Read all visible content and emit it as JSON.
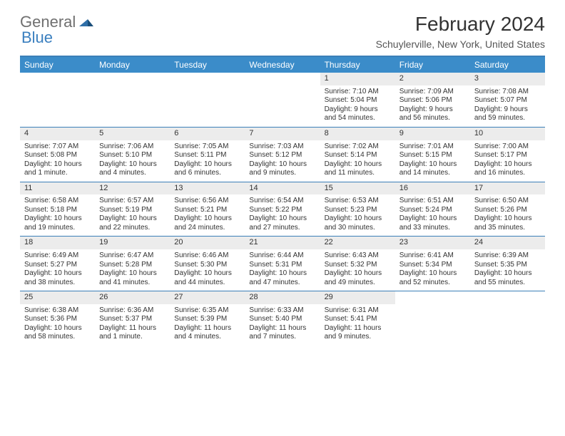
{
  "brand": {
    "part1": "General",
    "part2": "Blue"
  },
  "title": "February 2024",
  "location": "Schuylerville, New York, United States",
  "colors": {
    "header_bg": "#3b8cc9",
    "header_text": "#ffffff",
    "rule": "#3b7fb8",
    "daynum_bg": "#ececec",
    "body_text": "#333333",
    "logo_gray": "#6f6f6f",
    "logo_blue": "#3a7fbf"
  },
  "typography": {
    "title_fontsize": 28,
    "location_fontsize": 14,
    "dayhead_fontsize": 12,
    "cell_fontsize": 10
  },
  "day_names": [
    "Sunday",
    "Monday",
    "Tuesday",
    "Wednesday",
    "Thursday",
    "Friday",
    "Saturday"
  ],
  "weeks": [
    [
      null,
      null,
      null,
      null,
      {
        "n": "1",
        "sr": "Sunrise: 7:10 AM",
        "ss": "Sunset: 5:04 PM",
        "d1": "Daylight: 9 hours",
        "d2": "and 54 minutes."
      },
      {
        "n": "2",
        "sr": "Sunrise: 7:09 AM",
        "ss": "Sunset: 5:06 PM",
        "d1": "Daylight: 9 hours",
        "d2": "and 56 minutes."
      },
      {
        "n": "3",
        "sr": "Sunrise: 7:08 AM",
        "ss": "Sunset: 5:07 PM",
        "d1": "Daylight: 9 hours",
        "d2": "and 59 minutes."
      }
    ],
    [
      {
        "n": "4",
        "sr": "Sunrise: 7:07 AM",
        "ss": "Sunset: 5:08 PM",
        "d1": "Daylight: 10 hours",
        "d2": "and 1 minute."
      },
      {
        "n": "5",
        "sr": "Sunrise: 7:06 AM",
        "ss": "Sunset: 5:10 PM",
        "d1": "Daylight: 10 hours",
        "d2": "and 4 minutes."
      },
      {
        "n": "6",
        "sr": "Sunrise: 7:05 AM",
        "ss": "Sunset: 5:11 PM",
        "d1": "Daylight: 10 hours",
        "d2": "and 6 minutes."
      },
      {
        "n": "7",
        "sr": "Sunrise: 7:03 AM",
        "ss": "Sunset: 5:12 PM",
        "d1": "Daylight: 10 hours",
        "d2": "and 9 minutes."
      },
      {
        "n": "8",
        "sr": "Sunrise: 7:02 AM",
        "ss": "Sunset: 5:14 PM",
        "d1": "Daylight: 10 hours",
        "d2": "and 11 minutes."
      },
      {
        "n": "9",
        "sr": "Sunrise: 7:01 AM",
        "ss": "Sunset: 5:15 PM",
        "d1": "Daylight: 10 hours",
        "d2": "and 14 minutes."
      },
      {
        "n": "10",
        "sr": "Sunrise: 7:00 AM",
        "ss": "Sunset: 5:17 PM",
        "d1": "Daylight: 10 hours",
        "d2": "and 16 minutes."
      }
    ],
    [
      {
        "n": "11",
        "sr": "Sunrise: 6:58 AM",
        "ss": "Sunset: 5:18 PM",
        "d1": "Daylight: 10 hours",
        "d2": "and 19 minutes."
      },
      {
        "n": "12",
        "sr": "Sunrise: 6:57 AM",
        "ss": "Sunset: 5:19 PM",
        "d1": "Daylight: 10 hours",
        "d2": "and 22 minutes."
      },
      {
        "n": "13",
        "sr": "Sunrise: 6:56 AM",
        "ss": "Sunset: 5:21 PM",
        "d1": "Daylight: 10 hours",
        "d2": "and 24 minutes."
      },
      {
        "n": "14",
        "sr": "Sunrise: 6:54 AM",
        "ss": "Sunset: 5:22 PM",
        "d1": "Daylight: 10 hours",
        "d2": "and 27 minutes."
      },
      {
        "n": "15",
        "sr": "Sunrise: 6:53 AM",
        "ss": "Sunset: 5:23 PM",
        "d1": "Daylight: 10 hours",
        "d2": "and 30 minutes."
      },
      {
        "n": "16",
        "sr": "Sunrise: 6:51 AM",
        "ss": "Sunset: 5:24 PM",
        "d1": "Daylight: 10 hours",
        "d2": "and 33 minutes."
      },
      {
        "n": "17",
        "sr": "Sunrise: 6:50 AM",
        "ss": "Sunset: 5:26 PM",
        "d1": "Daylight: 10 hours",
        "d2": "and 35 minutes."
      }
    ],
    [
      {
        "n": "18",
        "sr": "Sunrise: 6:49 AM",
        "ss": "Sunset: 5:27 PM",
        "d1": "Daylight: 10 hours",
        "d2": "and 38 minutes."
      },
      {
        "n": "19",
        "sr": "Sunrise: 6:47 AM",
        "ss": "Sunset: 5:28 PM",
        "d1": "Daylight: 10 hours",
        "d2": "and 41 minutes."
      },
      {
        "n": "20",
        "sr": "Sunrise: 6:46 AM",
        "ss": "Sunset: 5:30 PM",
        "d1": "Daylight: 10 hours",
        "d2": "and 44 minutes."
      },
      {
        "n": "21",
        "sr": "Sunrise: 6:44 AM",
        "ss": "Sunset: 5:31 PM",
        "d1": "Daylight: 10 hours",
        "d2": "and 47 minutes."
      },
      {
        "n": "22",
        "sr": "Sunrise: 6:43 AM",
        "ss": "Sunset: 5:32 PM",
        "d1": "Daylight: 10 hours",
        "d2": "and 49 minutes."
      },
      {
        "n": "23",
        "sr": "Sunrise: 6:41 AM",
        "ss": "Sunset: 5:34 PM",
        "d1": "Daylight: 10 hours",
        "d2": "and 52 minutes."
      },
      {
        "n": "24",
        "sr": "Sunrise: 6:39 AM",
        "ss": "Sunset: 5:35 PM",
        "d1": "Daylight: 10 hours",
        "d2": "and 55 minutes."
      }
    ],
    [
      {
        "n": "25",
        "sr": "Sunrise: 6:38 AM",
        "ss": "Sunset: 5:36 PM",
        "d1": "Daylight: 10 hours",
        "d2": "and 58 minutes."
      },
      {
        "n": "26",
        "sr": "Sunrise: 6:36 AM",
        "ss": "Sunset: 5:37 PM",
        "d1": "Daylight: 11 hours",
        "d2": "and 1 minute."
      },
      {
        "n": "27",
        "sr": "Sunrise: 6:35 AM",
        "ss": "Sunset: 5:39 PM",
        "d1": "Daylight: 11 hours",
        "d2": "and 4 minutes."
      },
      {
        "n": "28",
        "sr": "Sunrise: 6:33 AM",
        "ss": "Sunset: 5:40 PM",
        "d1": "Daylight: 11 hours",
        "d2": "and 7 minutes."
      },
      {
        "n": "29",
        "sr": "Sunrise: 6:31 AM",
        "ss": "Sunset: 5:41 PM",
        "d1": "Daylight: 11 hours",
        "d2": "and 9 minutes."
      },
      null,
      null
    ]
  ]
}
